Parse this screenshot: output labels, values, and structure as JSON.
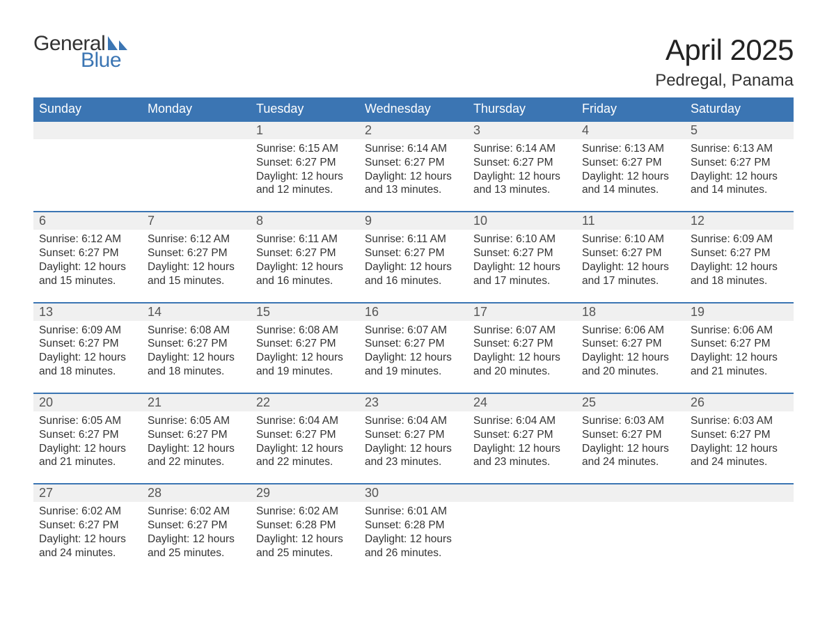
{
  "logo": {
    "text_general": "General",
    "text_blue": "Blue",
    "shape_color": "#3b75b3"
  },
  "title": "April 2025",
  "location": "Pedregal, Panama",
  "colors": {
    "header_bg": "#3b75b3",
    "header_text": "#ffffff",
    "daynum_bg": "#f0f0f0",
    "week_border": "#3b75b3",
    "body_text": "#333333",
    "page_bg": "#ffffff"
  },
  "days_of_week": [
    "Sunday",
    "Monday",
    "Tuesday",
    "Wednesday",
    "Thursday",
    "Friday",
    "Saturday"
  ],
  "weeks": [
    [
      null,
      null,
      {
        "n": "1",
        "sunrise": "Sunrise: 6:15 AM",
        "sunset": "Sunset: 6:27 PM",
        "dl1": "Daylight: 12 hours",
        "dl2": "and 12 minutes."
      },
      {
        "n": "2",
        "sunrise": "Sunrise: 6:14 AM",
        "sunset": "Sunset: 6:27 PM",
        "dl1": "Daylight: 12 hours",
        "dl2": "and 13 minutes."
      },
      {
        "n": "3",
        "sunrise": "Sunrise: 6:14 AM",
        "sunset": "Sunset: 6:27 PM",
        "dl1": "Daylight: 12 hours",
        "dl2": "and 13 minutes."
      },
      {
        "n": "4",
        "sunrise": "Sunrise: 6:13 AM",
        "sunset": "Sunset: 6:27 PM",
        "dl1": "Daylight: 12 hours",
        "dl2": "and 14 minutes."
      },
      {
        "n": "5",
        "sunrise": "Sunrise: 6:13 AM",
        "sunset": "Sunset: 6:27 PM",
        "dl1": "Daylight: 12 hours",
        "dl2": "and 14 minutes."
      }
    ],
    [
      {
        "n": "6",
        "sunrise": "Sunrise: 6:12 AM",
        "sunset": "Sunset: 6:27 PM",
        "dl1": "Daylight: 12 hours",
        "dl2": "and 15 minutes."
      },
      {
        "n": "7",
        "sunrise": "Sunrise: 6:12 AM",
        "sunset": "Sunset: 6:27 PM",
        "dl1": "Daylight: 12 hours",
        "dl2": "and 15 minutes."
      },
      {
        "n": "8",
        "sunrise": "Sunrise: 6:11 AM",
        "sunset": "Sunset: 6:27 PM",
        "dl1": "Daylight: 12 hours",
        "dl2": "and 16 minutes."
      },
      {
        "n": "9",
        "sunrise": "Sunrise: 6:11 AM",
        "sunset": "Sunset: 6:27 PM",
        "dl1": "Daylight: 12 hours",
        "dl2": "and 16 minutes."
      },
      {
        "n": "10",
        "sunrise": "Sunrise: 6:10 AM",
        "sunset": "Sunset: 6:27 PM",
        "dl1": "Daylight: 12 hours",
        "dl2": "and 17 minutes."
      },
      {
        "n": "11",
        "sunrise": "Sunrise: 6:10 AM",
        "sunset": "Sunset: 6:27 PM",
        "dl1": "Daylight: 12 hours",
        "dl2": "and 17 minutes."
      },
      {
        "n": "12",
        "sunrise": "Sunrise: 6:09 AM",
        "sunset": "Sunset: 6:27 PM",
        "dl1": "Daylight: 12 hours",
        "dl2": "and 18 minutes."
      }
    ],
    [
      {
        "n": "13",
        "sunrise": "Sunrise: 6:09 AM",
        "sunset": "Sunset: 6:27 PM",
        "dl1": "Daylight: 12 hours",
        "dl2": "and 18 minutes."
      },
      {
        "n": "14",
        "sunrise": "Sunrise: 6:08 AM",
        "sunset": "Sunset: 6:27 PM",
        "dl1": "Daylight: 12 hours",
        "dl2": "and 18 minutes."
      },
      {
        "n": "15",
        "sunrise": "Sunrise: 6:08 AM",
        "sunset": "Sunset: 6:27 PM",
        "dl1": "Daylight: 12 hours",
        "dl2": "and 19 minutes."
      },
      {
        "n": "16",
        "sunrise": "Sunrise: 6:07 AM",
        "sunset": "Sunset: 6:27 PM",
        "dl1": "Daylight: 12 hours",
        "dl2": "and 19 minutes."
      },
      {
        "n": "17",
        "sunrise": "Sunrise: 6:07 AM",
        "sunset": "Sunset: 6:27 PM",
        "dl1": "Daylight: 12 hours",
        "dl2": "and 20 minutes."
      },
      {
        "n": "18",
        "sunrise": "Sunrise: 6:06 AM",
        "sunset": "Sunset: 6:27 PM",
        "dl1": "Daylight: 12 hours",
        "dl2": "and 20 minutes."
      },
      {
        "n": "19",
        "sunrise": "Sunrise: 6:06 AM",
        "sunset": "Sunset: 6:27 PM",
        "dl1": "Daylight: 12 hours",
        "dl2": "and 21 minutes."
      }
    ],
    [
      {
        "n": "20",
        "sunrise": "Sunrise: 6:05 AM",
        "sunset": "Sunset: 6:27 PM",
        "dl1": "Daylight: 12 hours",
        "dl2": "and 21 minutes."
      },
      {
        "n": "21",
        "sunrise": "Sunrise: 6:05 AM",
        "sunset": "Sunset: 6:27 PM",
        "dl1": "Daylight: 12 hours",
        "dl2": "and 22 minutes."
      },
      {
        "n": "22",
        "sunrise": "Sunrise: 6:04 AM",
        "sunset": "Sunset: 6:27 PM",
        "dl1": "Daylight: 12 hours",
        "dl2": "and 22 minutes."
      },
      {
        "n": "23",
        "sunrise": "Sunrise: 6:04 AM",
        "sunset": "Sunset: 6:27 PM",
        "dl1": "Daylight: 12 hours",
        "dl2": "and 23 minutes."
      },
      {
        "n": "24",
        "sunrise": "Sunrise: 6:04 AM",
        "sunset": "Sunset: 6:27 PM",
        "dl1": "Daylight: 12 hours",
        "dl2": "and 23 minutes."
      },
      {
        "n": "25",
        "sunrise": "Sunrise: 6:03 AM",
        "sunset": "Sunset: 6:27 PM",
        "dl1": "Daylight: 12 hours",
        "dl2": "and 24 minutes."
      },
      {
        "n": "26",
        "sunrise": "Sunrise: 6:03 AM",
        "sunset": "Sunset: 6:27 PM",
        "dl1": "Daylight: 12 hours",
        "dl2": "and 24 minutes."
      }
    ],
    [
      {
        "n": "27",
        "sunrise": "Sunrise: 6:02 AM",
        "sunset": "Sunset: 6:27 PM",
        "dl1": "Daylight: 12 hours",
        "dl2": "and 24 minutes."
      },
      {
        "n": "28",
        "sunrise": "Sunrise: 6:02 AM",
        "sunset": "Sunset: 6:27 PM",
        "dl1": "Daylight: 12 hours",
        "dl2": "and 25 minutes."
      },
      {
        "n": "29",
        "sunrise": "Sunrise: 6:02 AM",
        "sunset": "Sunset: 6:28 PM",
        "dl1": "Daylight: 12 hours",
        "dl2": "and 25 minutes."
      },
      {
        "n": "30",
        "sunrise": "Sunrise: 6:01 AM",
        "sunset": "Sunset: 6:28 PM",
        "dl1": "Daylight: 12 hours",
        "dl2": "and 26 minutes."
      },
      null,
      null,
      null
    ]
  ]
}
